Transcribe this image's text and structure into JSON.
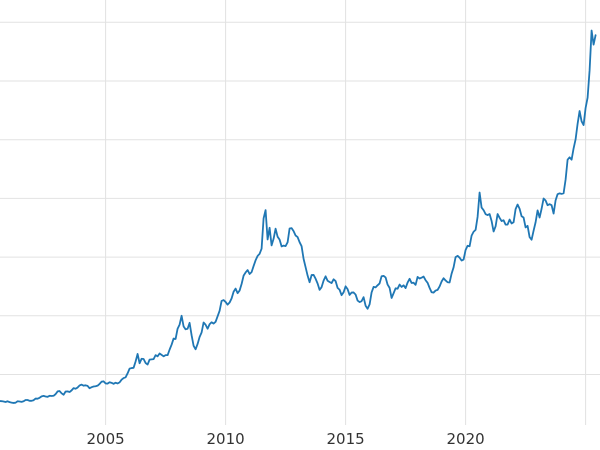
{
  "chart": {
    "line_color": "#1f77b4",
    "grid_color": "#e2e2e2",
    "background": "#ffffff",
    "tick_label_color": "#333333"
  },
  "chart_data": {
    "type": "line",
    "title": "",
    "xlabel": "",
    "ylabel": "",
    "grid": true,
    "legend": "none",
    "x_start": 2000.583,
    "x_step": 0.0833333,
    "xlim": [
      2000.6,
      2025.6
    ],
    "ylim": [
      70,
      3690
    ],
    "xticks": [
      2005,
      2010,
      2015,
      2020,
      2025
    ],
    "xtick_labels": [
      "2005",
      "2010",
      "2015",
      "2020",
      ""
    ],
    "yticks": [
      500,
      1000,
      1500,
      2000,
      2500,
      3000,
      3500
    ],
    "values": [
      274,
      273,
      270,
      266,
      272,
      265,
      261,
      258,
      260,
      272,
      270,
      267,
      272,
      283,
      283,
      276,
      276,
      281,
      295,
      294,
      302,
      314,
      318,
      313,
      310,
      319,
      317,
      319,
      333,
      356,
      359,
      340,
      328,
      355,
      356,
      351,
      365,
      384,
      379,
      389,
      407,
      414,
      405,
      408,
      403,
      383,
      392,
      398,
      400,
      405,
      420,
      439,
      442,
      424,
      423,
      434,
      429,
      421,
      430,
      424,
      433,
      456,
      470,
      476,
      510,
      550,
      555,
      557,
      611,
      675,
      596,
      634,
      632,
      598,
      585,
      627,
      629,
      631,
      665,
      655,
      679,
      667,
      655,
      665,
      665,
      712,
      754,
      806,
      803,
      890,
      925,
      1000,
      910,
      885,
      890,
      940,
      835,
      745,
      715,
      760,
      820,
      858,
      943,
      924,
      890,
      928,
      945,
      934,
      949,
      996,
      1043,
      1127,
      1134,
      1118,
      1095,
      1113,
      1148,
      1205,
      1232,
      1193,
      1215,
      1271,
      1342,
      1369,
      1390,
      1356,
      1372,
      1424,
      1473,
      1510,
      1528,
      1572,
      1830,
      1900,
      1650,
      1750,
      1600,
      1656,
      1742,
      1674,
      1649,
      1591,
      1598,
      1594,
      1626,
      1744,
      1747,
      1721,
      1684,
      1671,
      1627,
      1593,
      1485,
      1414,
      1343,
      1286,
      1347,
      1348,
      1316,
      1275,
      1221,
      1244,
      1300,
      1336,
      1299,
      1288,
      1279,
      1311,
      1296,
      1238,
      1222,
      1176,
      1200,
      1251,
      1227,
      1178,
      1198,
      1199,
      1181,
      1130,
      1117,
      1125,
      1159,
      1086,
      1060,
      1097,
      1199,
      1246,
      1242,
      1260,
      1276,
      1337,
      1340,
      1327,
      1266,
      1238,
      1152,
      1192,
      1234,
      1231,
      1266,
      1246,
      1260,
      1236,
      1283,
      1315,
      1280,
      1282,
      1264,
      1331,
      1318,
      1325,
      1334,
      1303,
      1281,
      1238,
      1201,
      1198,
      1215,
      1221,
      1250,
      1292,
      1320,
      1301,
      1286,
      1284,
      1359,
      1413,
      1500,
      1511,
      1495,
      1471,
      1479,
      1561,
      1597,
      1592,
      1683,
      1716,
      1732,
      1843,
      2050,
      1922,
      1900,
      1866,
      1858,
      1867,
      1808,
      1718,
      1762,
      1867,
      1835,
      1807,
      1814,
      1777,
      1777,
      1820,
      1787,
      1797,
      1909,
      1948,
      1912,
      1848,
      1837,
      1753,
      1766,
      1671,
      1648,
      1725,
      1797,
      1898,
      1837,
      1912,
      1999,
      1982,
      1942,
      1951,
      1942,
      1871,
      1983,
      2036,
      2043,
      2039,
      2044,
      2160,
      2330,
      2350,
      2330,
      2426,
      2503,
      2635,
      2744,
      2657,
      2625,
      2770,
      2858,
      3090,
      3430,
      3310,
      3390
    ]
  }
}
